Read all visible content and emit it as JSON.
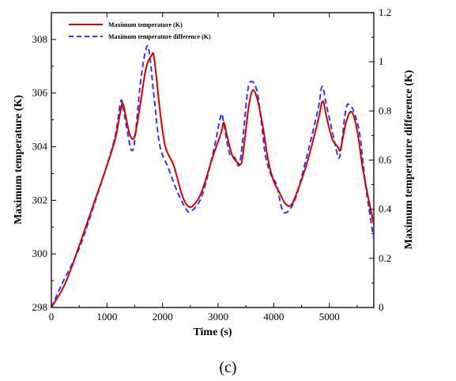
{
  "chart_data": {
    "type": "line",
    "xlabel": "Time (s)",
    "ylabel_left": "Maximum temperature (K)",
    "ylabel_right": "Maximum temperature difference (K)",
    "xlim": [
      0,
      5800
    ],
    "ylim_left": [
      298,
      309
    ],
    "ylim_right": [
      0,
      1.2
    ],
    "x_ticks": [
      0,
      1000,
      2000,
      3000,
      4000,
      5000
    ],
    "y_ticks_left": [
      298,
      300,
      302,
      304,
      306,
      308
    ],
    "y_ticks_right": [
      0,
      0.2,
      0.4,
      0.6,
      0.8,
      1,
      1.2
    ],
    "grid": false,
    "legend_position": "top-left",
    "series": [
      {
        "name": "Maximum temperature (K)",
        "axis": "left",
        "color": "#d40000",
        "style": "solid",
        "points": [
          [
            0,
            298.0
          ],
          [
            250,
            298.9
          ],
          [
            500,
            300.3
          ],
          [
            750,
            301.8
          ],
          [
            1000,
            303.3
          ],
          [
            1150,
            304.3
          ],
          [
            1250,
            305.4
          ],
          [
            1290,
            305.6
          ],
          [
            1350,
            305.0
          ],
          [
            1420,
            304.4
          ],
          [
            1500,
            304.4
          ],
          [
            1600,
            305.6
          ],
          [
            1700,
            306.9
          ],
          [
            1800,
            307.4
          ],
          [
            1850,
            307.3
          ],
          [
            1950,
            305.4
          ],
          [
            2050,
            304.0
          ],
          [
            2200,
            303.3
          ],
          [
            2350,
            302.2
          ],
          [
            2450,
            301.8
          ],
          [
            2550,
            301.8
          ],
          [
            2700,
            302.3
          ],
          [
            2900,
            303.6
          ],
          [
            3050,
            304.5
          ],
          [
            3100,
            304.9
          ],
          [
            3150,
            304.5
          ],
          [
            3250,
            303.7
          ],
          [
            3350,
            303.4
          ],
          [
            3420,
            303.4
          ],
          [
            3480,
            304.3
          ],
          [
            3550,
            305.5
          ],
          [
            3620,
            306.1
          ],
          [
            3700,
            305.8
          ],
          [
            3800,
            304.8
          ],
          [
            3900,
            303.5
          ],
          [
            4000,
            302.7
          ],
          [
            4100,
            302.3
          ],
          [
            4200,
            301.9
          ],
          [
            4300,
            301.8
          ],
          [
            4400,
            302.2
          ],
          [
            4600,
            303.4
          ],
          [
            4800,
            305.0
          ],
          [
            4880,
            305.7
          ],
          [
            4950,
            305.1
          ],
          [
            5050,
            304.3
          ],
          [
            5150,
            304.0
          ],
          [
            5200,
            303.9
          ],
          [
            5300,
            304.9
          ],
          [
            5400,
            305.3
          ],
          [
            5500,
            304.6
          ],
          [
            5600,
            303.2
          ],
          [
            5700,
            302.1
          ],
          [
            5800,
            301.1
          ]
        ]
      },
      {
        "name": "Maximum temperature difference (K)",
        "axis": "right",
        "color": "#3333ff",
        "style": "dashed",
        "points": [
          [
            0,
            0.0
          ],
          [
            200,
            0.1
          ],
          [
            500,
            0.24
          ],
          [
            800,
            0.44
          ],
          [
            1000,
            0.58
          ],
          [
            1150,
            0.7
          ],
          [
            1250,
            0.84
          ],
          [
            1300,
            0.8
          ],
          [
            1380,
            0.7
          ],
          [
            1440,
            0.64
          ],
          [
            1500,
            0.68
          ],
          [
            1600,
            0.91
          ],
          [
            1700,
            1.05
          ],
          [
            1760,
            1.04
          ],
          [
            1850,
            0.85
          ],
          [
            1950,
            0.66
          ],
          [
            2100,
            0.57
          ],
          [
            2250,
            0.48
          ],
          [
            2400,
            0.41
          ],
          [
            2500,
            0.39
          ],
          [
            2700,
            0.45
          ],
          [
            2900,
            0.62
          ],
          [
            3050,
            0.78
          ],
          [
            3100,
            0.75
          ],
          [
            3200,
            0.63
          ],
          [
            3300,
            0.61
          ],
          [
            3380,
            0.58
          ],
          [
            3450,
            0.7
          ],
          [
            3530,
            0.88
          ],
          [
            3600,
            0.92
          ],
          [
            3700,
            0.88
          ],
          [
            3780,
            0.75
          ],
          [
            3850,
            0.62
          ],
          [
            3950,
            0.54
          ],
          [
            4050,
            0.5
          ],
          [
            4150,
            0.4
          ],
          [
            4250,
            0.39
          ],
          [
            4400,
            0.45
          ],
          [
            4600,
            0.62
          ],
          [
            4800,
            0.81
          ],
          [
            4870,
            0.9
          ],
          [
            4950,
            0.82
          ],
          [
            5050,
            0.72
          ],
          [
            5150,
            0.62
          ],
          [
            5200,
            0.63
          ],
          [
            5300,
            0.81
          ],
          [
            5380,
            0.82
          ],
          [
            5450,
            0.79
          ],
          [
            5550,
            0.7
          ],
          [
            5650,
            0.5
          ],
          [
            5750,
            0.35
          ],
          [
            5800,
            0.28
          ]
        ]
      }
    ]
  },
  "caption": "(c)"
}
